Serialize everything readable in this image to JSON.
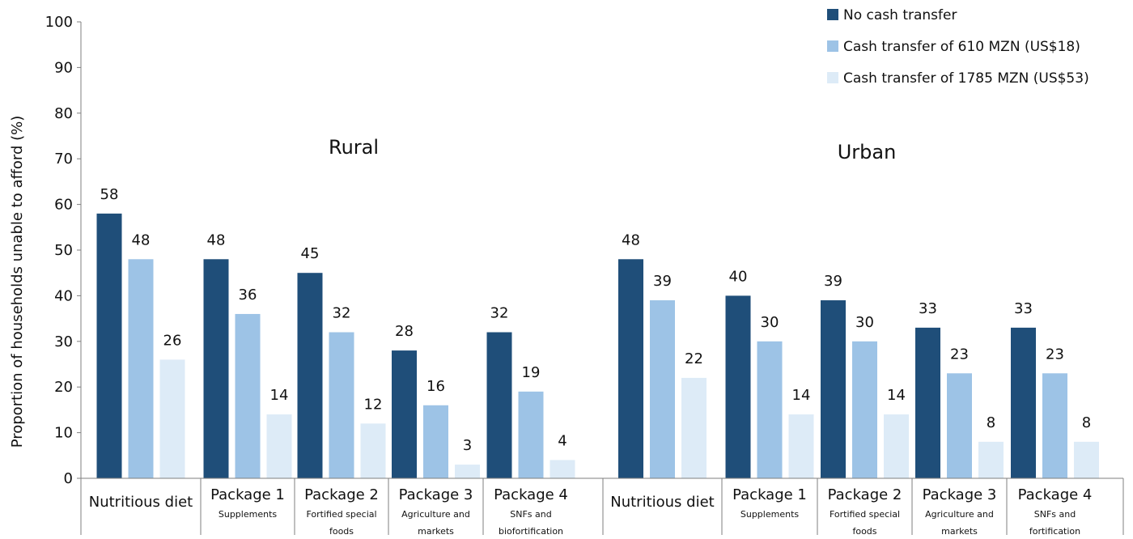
{
  "chart_data": {
    "type": "bar",
    "ylabel": "Proportion of households unable to afford (%)",
    "ylim": [
      0,
      100
    ],
    "yticks": [
      0,
      10,
      20,
      30,
      40,
      50,
      60,
      70,
      80,
      90,
      100
    ],
    "grid": false,
    "legend_position": "top-right",
    "colors": [
      "#1f4e79",
      "#9dc3e6",
      "#ddebf7"
    ],
    "series": [
      {
        "name": "No cash transfer"
      },
      {
        "name": "Cash transfer of 610 MZN (US$18)"
      },
      {
        "name": "Cash transfer of 1785 MZN (US$53)"
      }
    ],
    "groups": [
      {
        "name": "Rural",
        "categories": [
          {
            "label": "Nutritious diet",
            "sub": [],
            "values": [
              58,
              48,
              26
            ]
          },
          {
            "label": "Package 1",
            "sub": [
              "Supplements"
            ],
            "values": [
              48,
              36,
              14
            ]
          },
          {
            "label": "Package 2",
            "sub": [
              "Fortified special",
              "foods"
            ],
            "values": [
              45,
              32,
              12
            ]
          },
          {
            "label": "Package 3",
            "sub": [
              "Agriculture and",
              "markets"
            ],
            "values": [
              28,
              16,
              3
            ]
          },
          {
            "label": "Package 4",
            "sub": [
              "SNFs and",
              "biofortification"
            ],
            "values": [
              32,
              19,
              4
            ]
          }
        ]
      },
      {
        "name": "Urban",
        "categories": [
          {
            "label": "Nutritious diet",
            "sub": [],
            "values": [
              48,
              39,
              22
            ]
          },
          {
            "label": "Package 1",
            "sub": [
              "Supplements"
            ],
            "values": [
              40,
              30,
              14
            ]
          },
          {
            "label": "Package 2",
            "sub": [
              "Fortified special",
              "foods"
            ],
            "values": [
              39,
              30,
              14
            ]
          },
          {
            "label": "Package 3",
            "sub": [
              "Agriculture and",
              "markets"
            ],
            "values": [
              33,
              23,
              8
            ]
          },
          {
            "label": "Package 4",
            "sub": [
              "SNFs and",
              "fortification"
            ],
            "values": [
              33,
              23,
              8
            ]
          }
        ]
      }
    ]
  }
}
